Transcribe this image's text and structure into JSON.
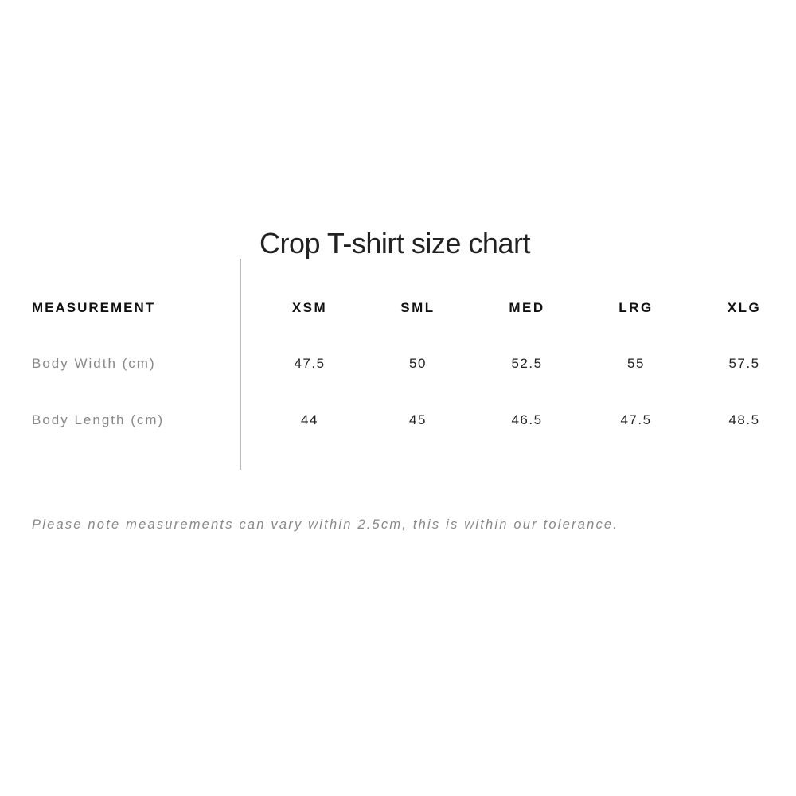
{
  "title": "Crop T-shirt size chart",
  "table": {
    "header_label": "MEASUREMENT",
    "sizes": [
      "XSM",
      "SML",
      "MED",
      "LRG",
      "XLG"
    ],
    "rows": [
      {
        "label": "Body Width (cm)",
        "values": [
          "47.5",
          "50",
          "52.5",
          "55",
          "57.5"
        ]
      },
      {
        "label": "Body Length (cm)",
        "values": [
          "44",
          "45",
          "46.5",
          "47.5",
          "48.5"
        ]
      }
    ]
  },
  "note": "Please note measurements can vary within 2.5cm, this is within our tolerance."
}
